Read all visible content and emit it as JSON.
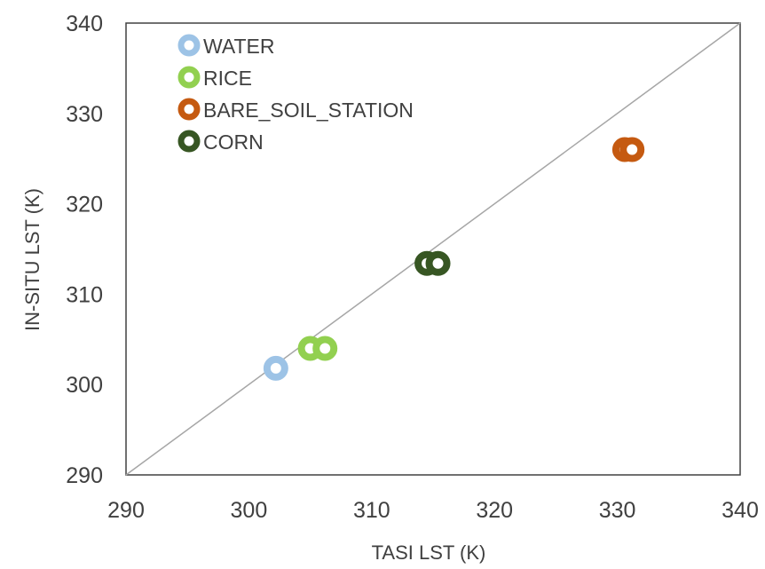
{
  "chart_data": {
    "type": "scatter",
    "title": "",
    "xlabel": "TASI LST (K)",
    "ylabel": "IN-SITU LST (K)",
    "xlim": [
      290,
      340
    ],
    "ylim": [
      290,
      340
    ],
    "xticks": [
      290,
      300,
      310,
      320,
      330,
      340
    ],
    "yticks": [
      290,
      300,
      310,
      320,
      330,
      340
    ],
    "grid": false,
    "legend_position": "top-left",
    "reference_line": {
      "x": [
        290,
        340
      ],
      "y": [
        290,
        340
      ],
      "color": "#a6a6a6"
    },
    "series": [
      {
        "name": "WATER",
        "color": "#9dc3e6",
        "points": [
          {
            "x": 302.2,
            "y": 301.8
          }
        ]
      },
      {
        "name": "RICE",
        "color": "#92d050",
        "points": [
          {
            "x": 305.0,
            "y": 304.0
          },
          {
            "x": 306.2,
            "y": 304.0
          }
        ]
      },
      {
        "name": "BARE_SOIL_STATION",
        "color": "#c55a11",
        "points": [
          {
            "x": 330.6,
            "y": 326.0
          },
          {
            "x": 331.2,
            "y": 326.0
          }
        ]
      },
      {
        "name": "CORN",
        "color": "#375623",
        "points": [
          {
            "x": 314.5,
            "y": 313.4
          },
          {
            "x": 315.4,
            "y": 313.4
          }
        ]
      }
    ]
  }
}
